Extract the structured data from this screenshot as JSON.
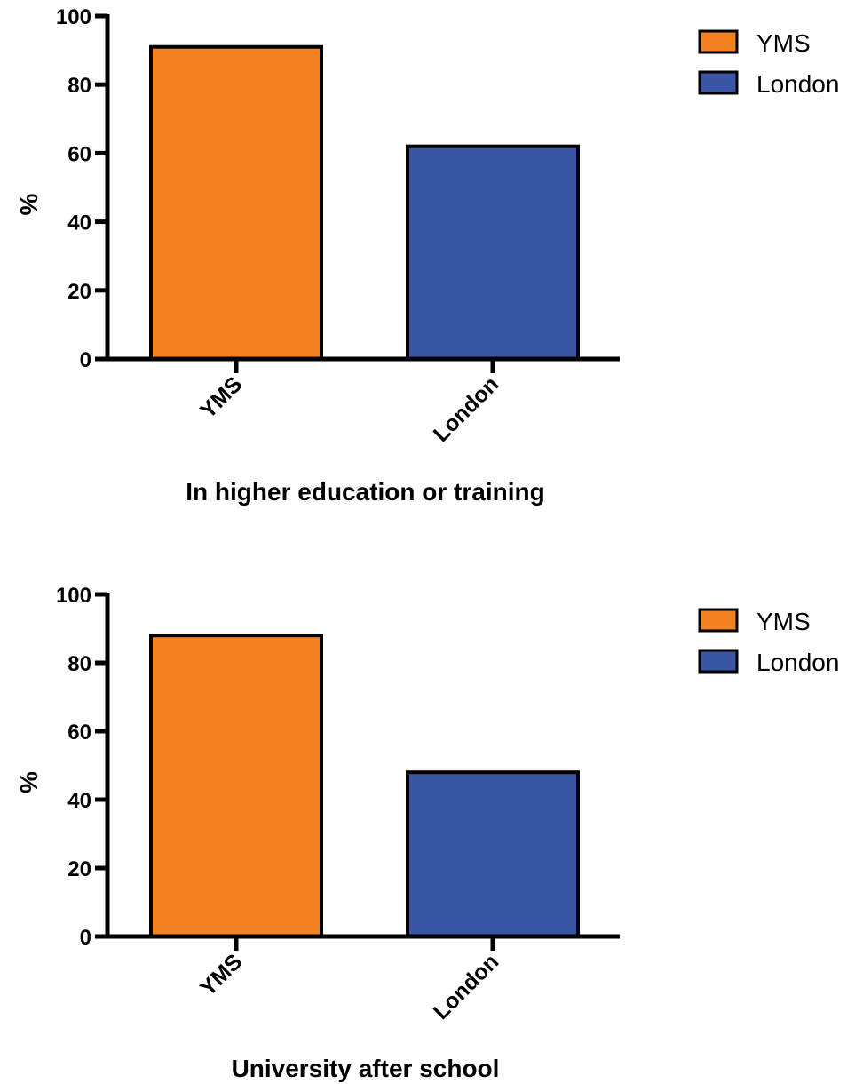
{
  "chart_data": [
    {
      "type": "bar",
      "xlabel": "In higher education or training",
      "ylabel": "%",
      "ylim": [
        0,
        100
      ],
      "yticks": [
        0,
        20,
        40,
        60,
        80,
        100
      ],
      "categories": [
        "YMS",
        "London"
      ],
      "values": [
        91,
        62
      ],
      "colors": [
        "#f58220",
        "#3a55a4"
      ],
      "legend": {
        "position": "top-right",
        "entries": [
          "YMS",
          "London"
        ]
      },
      "grid": false
    },
    {
      "type": "bar",
      "xlabel": "University after school",
      "ylabel": "%",
      "ylim": [
        0,
        100
      ],
      "yticks": [
        0,
        20,
        40,
        60,
        80,
        100
      ],
      "categories": [
        "YMS",
        "London"
      ],
      "values": [
        88,
        48
      ],
      "colors": [
        "#f58220",
        "#3a55a4"
      ],
      "legend": {
        "position": "top-right",
        "entries": [
          "YMS",
          "London"
        ]
      },
      "grid": false
    }
  ]
}
